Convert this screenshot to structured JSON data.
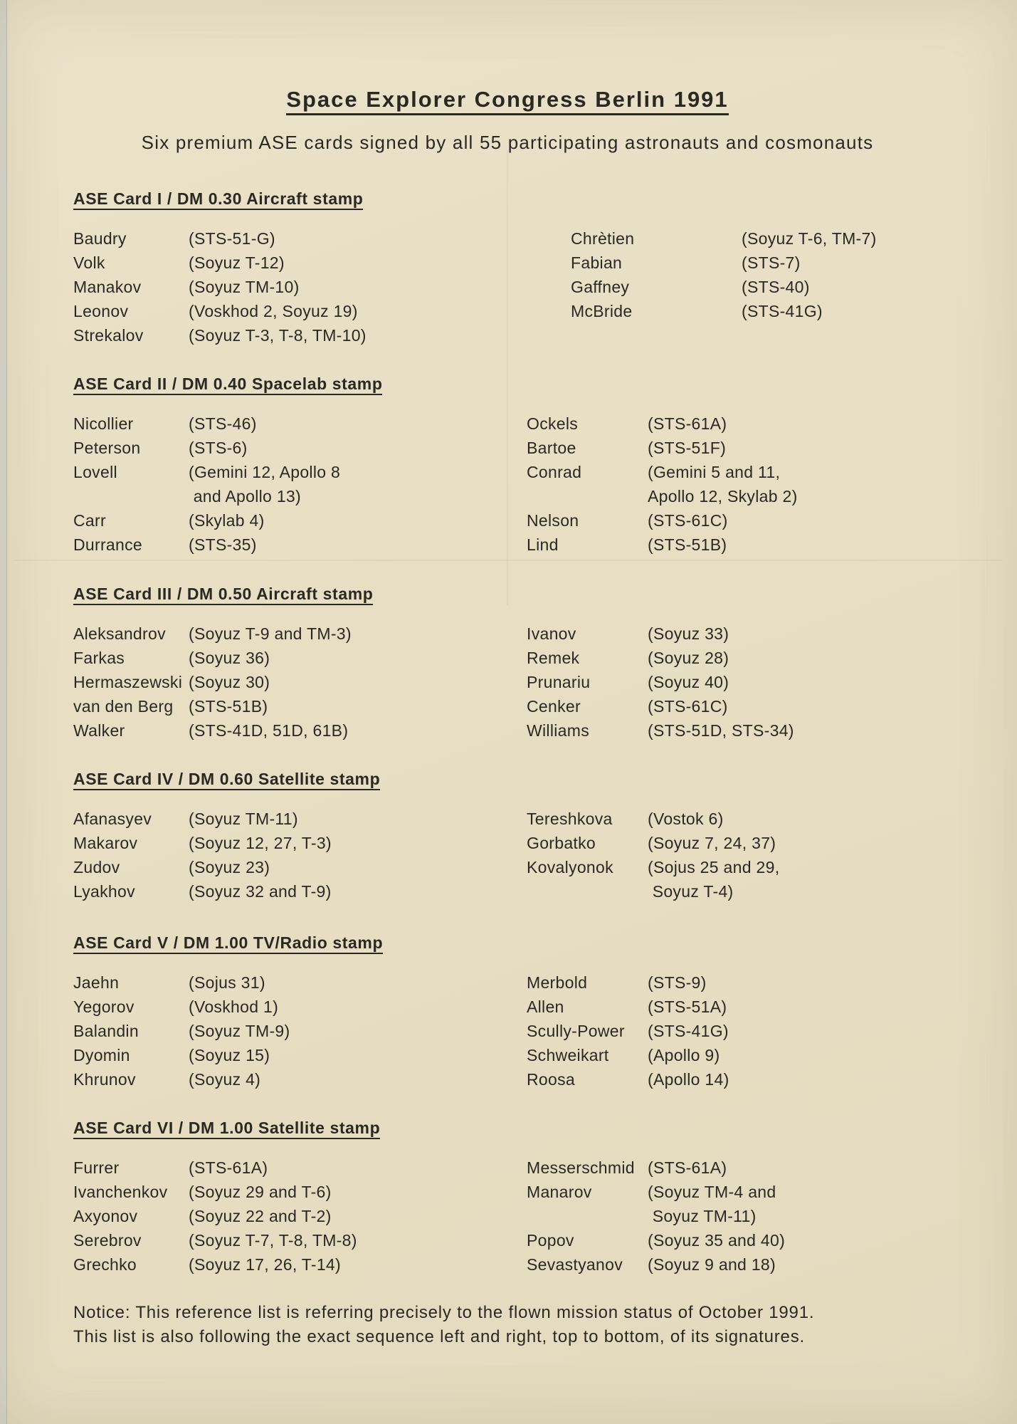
{
  "document": {
    "title": "Space Explorer Congress Berlin 1991",
    "subtitle": "Six premium ASE cards signed by all 55 participating astronauts and cosmonauts",
    "notice": "Notice: This reference list is referring precisely to the flown mission status of October 1991.\nThis list is also following the exact sequence left and right, top to bottom, of its signatures."
  },
  "sections": [
    {
      "heading": "ASE Card I / DM 0.30 Aircraft stamp",
      "left": [
        {
          "name": "Baudry",
          "missions": "(STS-51-G)"
        },
        {
          "name": "Volk",
          "missions": "(Soyuz T-12)"
        },
        {
          "name": "Manakov",
          "missions": "(Soyuz TM-10)"
        },
        {
          "name": "Leonov",
          "missions": "(Voskhod 2, Soyuz 19)"
        },
        {
          "name": "Strekalov",
          "missions": "(Soyuz T-3, T-8, TM-10)"
        }
      ],
      "right": [
        {
          "name": "Chrètien",
          "missions": "(Soyuz T-6, TM-7)"
        },
        {
          "name": "Fabian",
          "missions": "(STS-7)"
        },
        {
          "name": "Gaffney",
          "missions": "(STS-40)"
        },
        {
          "name": "McBride",
          "missions": "(STS-41G)"
        }
      ]
    },
    {
      "heading": "ASE Card II / DM 0.40 Spacelab stamp",
      "left": [
        {
          "name": "Nicollier",
          "missions": "(STS-46)"
        },
        {
          "name": "Peterson",
          "missions": "(STS-6)"
        },
        {
          "name": "Lovell",
          "missions": "(Gemini 12, Apollo 8\n and Apollo 13)"
        },
        {
          "name": "Carr",
          "missions": "(Skylab 4)"
        },
        {
          "name": "Durrance",
          "missions": "(STS-35)"
        }
      ],
      "right": [
        {
          "name": "Ockels",
          "missions": "(STS-61A)"
        },
        {
          "name": "Bartoe",
          "missions": "(STS-51F)"
        },
        {
          "name": "Conrad",
          "missions": "(Gemini 5 and 11,\nApollo 12, Skylab 2)"
        },
        {
          "name": "Nelson",
          "missions": "(STS-61C)"
        },
        {
          "name": "Lind",
          "missions": "(STS-51B)"
        }
      ]
    },
    {
      "heading": "ASE Card III / DM 0.50 Aircraft stamp",
      "left": [
        {
          "name": "Aleksandrov",
          "missions": "(Soyuz T-9 and TM-3)"
        },
        {
          "name": "Farkas",
          "missions": "(Soyuz 36)"
        },
        {
          "name": "Hermaszewski",
          "missions": "(Soyuz 30)"
        },
        {
          "name": "van den Berg",
          "missions": "(STS-51B)"
        },
        {
          "name": "Walker",
          "missions": "(STS-41D, 51D, 61B)"
        }
      ],
      "right": [
        {
          "name": "Ivanov",
          "missions": "(Soyuz 33)"
        },
        {
          "name": "Remek",
          "missions": "(Soyuz 28)"
        },
        {
          "name": "Prunariu",
          "missions": "(Soyuz 40)"
        },
        {
          "name": "Cenker",
          "missions": "(STS-61C)"
        },
        {
          "name": "Williams",
          "missions": "(STS-51D, STS-34)"
        }
      ]
    },
    {
      "heading": "ASE Card IV / DM 0.60 Satellite stamp",
      "left": [
        {
          "name": "Afanasyev",
          "missions": "(Soyuz TM-11)"
        },
        {
          "name": "Makarov",
          "missions": "(Soyuz 12, 27, T-3)"
        },
        {
          "name": "Zudov",
          "missions": "(Soyuz 23)"
        },
        {
          "name": "Lyakhov",
          "missions": "(Soyuz 32 and T-9)"
        }
      ],
      "right": [
        {
          "name": "Tereshkova",
          "missions": "(Vostok 6)"
        },
        {
          "name": "Gorbatko",
          "missions": "(Soyuz 7, 24, 37)"
        },
        {
          "name": "Kovalyonok",
          "missions": "(Sojus 25 and 29,\n Soyuz T-4)"
        }
      ]
    },
    {
      "heading": "ASE Card V / DM 1.00 TV/Radio stamp",
      "left": [
        {
          "name": "Jaehn",
          "missions": "(Sojus 31)"
        },
        {
          "name": "Yegorov",
          "missions": "(Voskhod 1)"
        },
        {
          "name": "Balandin",
          "missions": "(Soyuz TM-9)"
        },
        {
          "name": "Dyomin",
          "missions": "(Soyuz 15)"
        },
        {
          "name": "Khrunov",
          "missions": "(Soyuz 4)"
        }
      ],
      "right": [
        {
          "name": "Merbold",
          "missions": "(STS-9)"
        },
        {
          "name": "Allen",
          "missions": "(STS-51A)"
        },
        {
          "name": "Scully-Power",
          "missions": "(STS-41G)"
        },
        {
          "name": "Schweikart",
          "missions": "(Apollo 9)"
        },
        {
          "name": "Roosa",
          "missions": "(Apollo 14)"
        }
      ]
    },
    {
      "heading": "ASE Card VI / DM 1.00 Satellite stamp",
      "left": [
        {
          "name": "Furrer",
          "missions": "(STS-61A)"
        },
        {
          "name": "Ivanchenkov",
          "missions": "(Soyuz 29 and T-6)"
        },
        {
          "name": "Axyonov",
          "missions": "(Soyuz 22 and T-2)"
        },
        {
          "name": "Serebrov",
          "missions": "(Soyuz T-7, T-8, TM-8)"
        },
        {
          "name": "Grechko",
          "missions": "(Soyuz 17, 26, T-14)"
        }
      ],
      "right": [
        {
          "name": "Messerschmid",
          "missions": "(STS-61A)"
        },
        {
          "name": "Manarov",
          "missions": "(Soyuz TM-4 and\n Soyuz TM-11)"
        },
        {
          "name": "Popov",
          "missions": "(Soyuz 35 and 40)"
        },
        {
          "name": "Sevastyanov",
          "missions": "(Soyuz 9 and 18)"
        }
      ]
    }
  ]
}
